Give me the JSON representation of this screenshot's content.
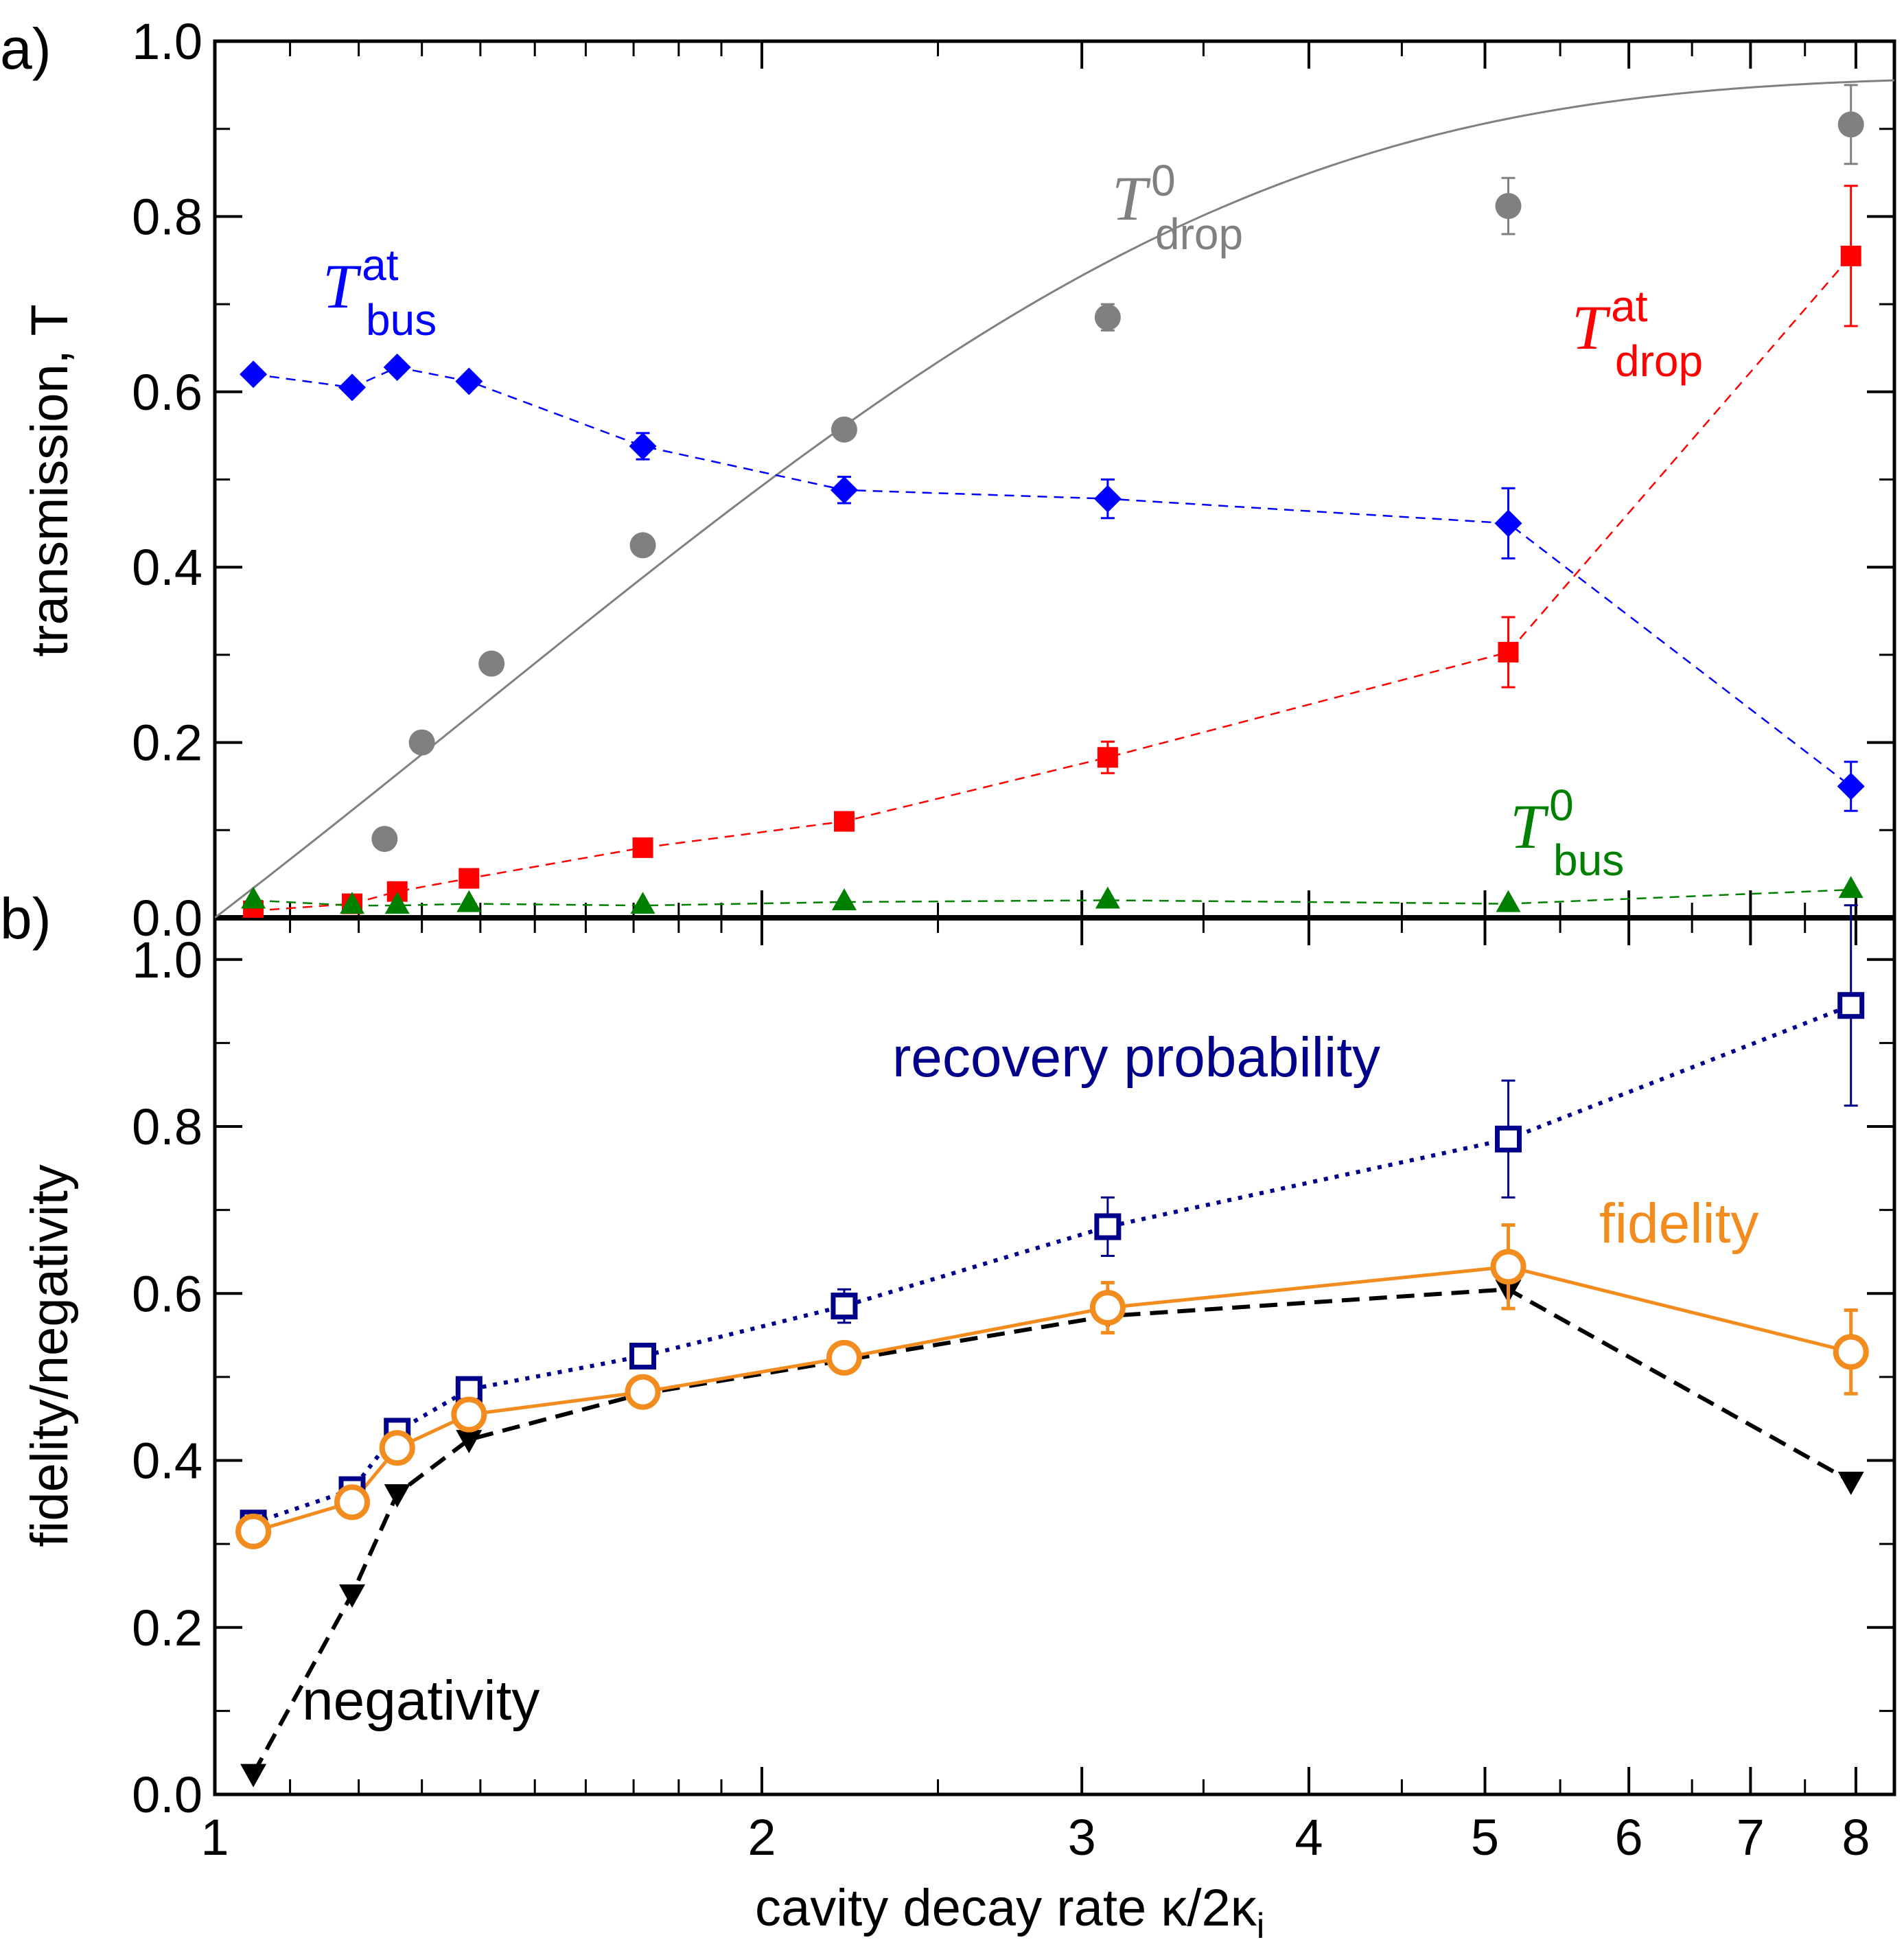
{
  "chart_data": [
    {
      "panel": "a)",
      "type": "scatter",
      "xscale": "log",
      "xlim": [
        1,
        8.4
      ],
      "ylim": [
        0,
        1.0
      ],
      "ylabel": "transmission, T",
      "xlabel": "",
      "yticks": [
        "0.0",
        "0.2",
        "0.4",
        "0.6",
        "0.8",
        "1.0"
      ],
      "series": [
        {
          "key": "t0drop",
          "label_main": "T",
          "label_sup": "0",
          "label_sub": "drop",
          "color": "#808080",
          "marker": "circle",
          "x": [
            1.24,
            1.3,
            1.42,
            1.72,
            2.22,
            3.1,
            5.15,
            7.95
          ],
          "y": [
            0.09,
            0.2,
            0.29,
            0.425,
            0.557,
            0.685,
            0.812,
            0.905
          ],
          "err": [
            0,
            0,
            0,
            0,
            0,
            0.015,
            0.032,
            0.045
          ],
          "fit": {
            "a": 0.96,
            "b": 0.72
          }
        },
        {
          "key": "tatbus",
          "label_main": "T",
          "label_sup": "at",
          "label_sub": "bus",
          "color": "#0000ff",
          "marker": "diamond",
          "x": [
            1.05,
            1.19,
            1.26,
            1.38,
            1.72,
            2.22,
            3.1,
            5.15,
            7.95
          ],
          "y": [
            0.62,
            0.605,
            0.628,
            0.612,
            0.538,
            0.488,
            0.478,
            0.45,
            0.15
          ],
          "err": [
            0,
            0,
            0,
            0,
            0.015,
            0.015,
            0.022,
            0.04,
            0.028
          ]
        },
        {
          "key": "tatdrop",
          "label_main": "T",
          "label_sup": "at",
          "label_sub": "drop",
          "color": "#ff0000",
          "marker": "square",
          "x": [
            1.05,
            1.19,
            1.26,
            1.38,
            1.72,
            2.22,
            3.1,
            5.15,
            7.95
          ],
          "y": [
            0.008,
            0.016,
            0.03,
            0.045,
            0.08,
            0.11,
            0.183,
            0.303,
            0.755
          ],
          "err": [
            0,
            0,
            0,
            0,
            0,
            0,
            0.018,
            0.04,
            0.08
          ]
        },
        {
          "key": "t0bus",
          "label_main": "T",
          "label_sup": "0",
          "label_sub": "bus",
          "color": "#008000",
          "marker": "triangle",
          "x": [
            1.05,
            1.19,
            1.26,
            1.38,
            1.72,
            2.22,
            3.1,
            5.15,
            7.95
          ],
          "y": [
            0.02,
            0.014,
            0.014,
            0.016,
            0.014,
            0.018,
            0.02,
            0.016,
            0.032
          ],
          "err": [
            0,
            0,
            0,
            0,
            0,
            0,
            0,
            0,
            0
          ]
        }
      ]
    },
    {
      "panel": "b)",
      "type": "line",
      "xscale": "log",
      "xlim": [
        1,
        8.4
      ],
      "ylim": [
        0,
        1.05
      ],
      "ylabel": "fidelity/negativity",
      "xlabel": "cavity decay rate κ/2κ",
      "xlabel_sub": "i",
      "yticks": [
        "0.0",
        "0.2",
        "0.4",
        "0.6",
        "0.8",
        "1.0"
      ],
      "xticks": [
        "1",
        "2",
        "3",
        "4",
        "5",
        "6",
        "7",
        "8"
      ],
      "series": [
        {
          "key": "recovery",
          "name": "recovery probability",
          "color": "#00008b",
          "marker": "open-square",
          "x": [
            1.05,
            1.19,
            1.26,
            1.38,
            1.72,
            2.22,
            3.1,
            5.15,
            7.95
          ],
          "y": [
            0.325,
            0.365,
            0.435,
            0.485,
            0.525,
            0.585,
            0.68,
            0.785,
            0.945
          ],
          "err": [
            0,
            0,
            0,
            0,
            0,
            0.02,
            0.035,
            0.07,
            0.12
          ]
        },
        {
          "key": "fidelity",
          "name": "fidelity",
          "color": "#f28c1f",
          "marker": "open-circle",
          "x": [
            1.05,
            1.19,
            1.26,
            1.38,
            1.72,
            2.22,
            3.1,
            5.15,
            7.95
          ],
          "y": [
            0.315,
            0.35,
            0.415,
            0.455,
            0.482,
            0.523,
            0.583,
            0.632,
            0.53
          ],
          "err": [
            0,
            0,
            0,
            0,
            0,
            0,
            0.03,
            0.05,
            0.05
          ]
        },
        {
          "key": "negativity",
          "name": "negativity",
          "color": "#000000",
          "marker": "down-triangle",
          "x": [
            1.05,
            1.19,
            1.26,
            1.38,
            1.72,
            2.22,
            3.1,
            5.15,
            7.95
          ],
          "y": [
            0.025,
            0.24,
            0.36,
            0.425,
            0.48,
            0.52,
            0.573,
            0.605,
            0.375
          ],
          "err": [
            0,
            0,
            0,
            0,
            0,
            0,
            0,
            0,
            0
          ]
        }
      ]
    }
  ]
}
